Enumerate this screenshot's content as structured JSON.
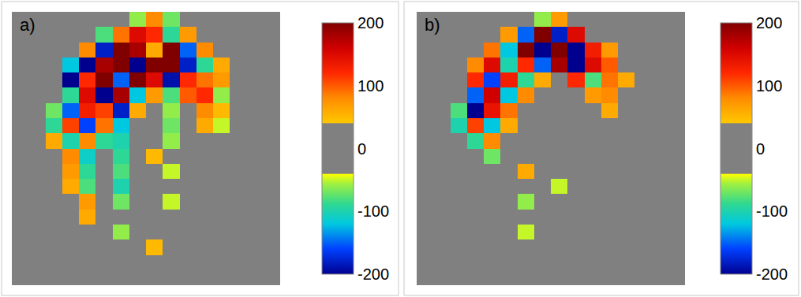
{
  "chart_data": [
    {
      "type": "heatmap",
      "title": "a)",
      "tick_labels": false,
      "colorbar_range": [
        -200,
        200
      ],
      "colorbar_ticks": [
        -200,
        -100,
        0,
        100,
        200
      ],
      "z": [
        [
          0,
          0,
          0,
          0,
          0,
          0,
          0,
          -60,
          80,
          -70,
          0,
          0,
          0,
          0,
          0,
          0
        ],
        [
          0,
          0,
          0,
          0,
          0,
          -80,
          90,
          150,
          120,
          -90,
          70,
          0,
          0,
          0,
          0,
          0
        ],
        [
          0,
          0,
          0,
          0,
          80,
          -180,
          200,
          180,
          60,
          200,
          -150,
          80,
          0,
          0,
          0,
          0
        ],
        [
          0,
          0,
          0,
          -120,
          -200,
          180,
          200,
          -200,
          200,
          200,
          -180,
          -90,
          60,
          0,
          0,
          0
        ],
        [
          0,
          0,
          0,
          -200,
          120,
          200,
          -150,
          200,
          150,
          -190,
          120,
          90,
          70,
          0,
          0,
          0
        ],
        [
          0,
          0,
          0,
          -90,
          150,
          -200,
          180,
          -120,
          70,
          -80,
          100,
          120,
          -60,
          0,
          0,
          0
        ],
        [
          0,
          0,
          -70,
          -150,
          130,
          110,
          -180,
          60,
          0,
          -60,
          0,
          80,
          50,
          0,
          0,
          0
        ],
        [
          0,
          0,
          -90,
          110,
          -160,
          90,
          -120,
          0,
          0,
          -70,
          0,
          60,
          -50,
          0,
          0,
          0
        ],
        [
          0,
          0,
          60,
          -100,
          80,
          -90,
          -100,
          0,
          0,
          -60,
          0,
          0,
          0,
          0,
          0,
          0
        ],
        [
          0,
          0,
          0,
          80,
          -110,
          0,
          -90,
          0,
          50,
          0,
          0,
          0,
          0,
          0,
          0,
          0
        ],
        [
          0,
          0,
          0,
          70,
          -90,
          0,
          -80,
          0,
          0,
          -50,
          0,
          0,
          0,
          0,
          0,
          0
        ],
        [
          0,
          0,
          0,
          60,
          -80,
          0,
          -100,
          0,
          0,
          0,
          0,
          0,
          0,
          0,
          0,
          0
        ],
        [
          0,
          0,
          0,
          0,
          70,
          0,
          -70,
          0,
          0,
          -50,
          0,
          0,
          0,
          0,
          0,
          0
        ],
        [
          0,
          0,
          0,
          0,
          60,
          0,
          0,
          0,
          0,
          0,
          0,
          0,
          0,
          0,
          0,
          0
        ],
        [
          0,
          0,
          0,
          0,
          0,
          0,
          -60,
          0,
          0,
          0,
          0,
          0,
          0,
          0,
          0,
          0
        ],
        [
          0,
          0,
          0,
          0,
          0,
          0,
          0,
          0,
          50,
          0,
          0,
          0,
          0,
          0,
          0,
          0
        ],
        [
          0,
          0,
          0,
          0,
          0,
          0,
          0,
          0,
          0,
          0,
          0,
          0,
          0,
          0,
          0,
          0
        ],
        [
          0,
          0,
          0,
          0,
          0,
          0,
          0,
          0,
          0,
          0,
          0,
          0,
          0,
          0,
          0,
          0
        ]
      ]
    },
    {
      "type": "heatmap",
      "title": "b)",
      "tick_labels": false,
      "colorbar_range": [
        -200,
        200
      ],
      "colorbar_ticks": [
        -200,
        -100,
        0,
        100,
        200
      ],
      "z": [
        [
          0,
          0,
          0,
          0,
          0,
          0,
          0,
          -60,
          70,
          0,
          0,
          0,
          0,
          0,
          0,
          0
        ],
        [
          0,
          0,
          0,
          0,
          0,
          70,
          -150,
          200,
          -180,
          150,
          0,
          0,
          0,
          0,
          0,
          0
        ],
        [
          0,
          0,
          0,
          0,
          90,
          -120,
          200,
          -200,
          200,
          -200,
          130,
          70,
          0,
          0,
          0,
          0
        ],
        [
          0,
          0,
          0,
          80,
          150,
          -100,
          120,
          -150,
          180,
          -200,
          150,
          100,
          0,
          0,
          0,
          0
        ],
        [
          0,
          0,
          0,
          120,
          -160,
          130,
          -90,
          60,
          0,
          120,
          -80,
          90,
          60,
          0,
          0,
          0
        ],
        [
          0,
          0,
          0,
          -150,
          160,
          -120,
          80,
          0,
          0,
          0,
          70,
          80,
          0,
          0,
          0,
          0
        ],
        [
          0,
          0,
          -80,
          -200,
          140,
          90,
          0,
          0,
          0,
          0,
          0,
          60,
          0,
          0,
          0,
          0
        ],
        [
          0,
          0,
          -100,
          110,
          -120,
          60,
          0,
          0,
          0,
          0,
          0,
          0,
          0,
          0,
          0,
          0
        ],
        [
          0,
          0,
          0,
          -90,
          80,
          0,
          0,
          0,
          0,
          0,
          0,
          0,
          0,
          0,
          0,
          0
        ],
        [
          0,
          0,
          0,
          0,
          -70,
          0,
          0,
          0,
          0,
          0,
          0,
          0,
          0,
          0,
          0,
          0
        ],
        [
          0,
          0,
          0,
          0,
          0,
          0,
          60,
          0,
          0,
          0,
          0,
          0,
          0,
          0,
          0,
          0
        ],
        [
          0,
          0,
          0,
          0,
          0,
          0,
          0,
          0,
          -50,
          0,
          0,
          0,
          0,
          0,
          0,
          0
        ],
        [
          0,
          0,
          0,
          0,
          0,
          0,
          -60,
          0,
          0,
          0,
          0,
          0,
          0,
          0,
          0,
          0
        ],
        [
          0,
          0,
          0,
          0,
          0,
          0,
          0,
          0,
          0,
          0,
          0,
          0,
          0,
          0,
          0,
          0
        ],
        [
          0,
          0,
          0,
          0,
          0,
          0,
          -50,
          0,
          0,
          0,
          0,
          0,
          0,
          0,
          0,
          0
        ],
        [
          0,
          0,
          0,
          0,
          0,
          0,
          0,
          0,
          0,
          0,
          0,
          0,
          0,
          0,
          0,
          0
        ],
        [
          0,
          0,
          0,
          0,
          0,
          0,
          0,
          0,
          0,
          0,
          0,
          0,
          0,
          0,
          0,
          0
        ],
        [
          0,
          0,
          0,
          0,
          0,
          0,
          0,
          0,
          0,
          0,
          0,
          0,
          0,
          0,
          0,
          0
        ]
      ]
    }
  ]
}
